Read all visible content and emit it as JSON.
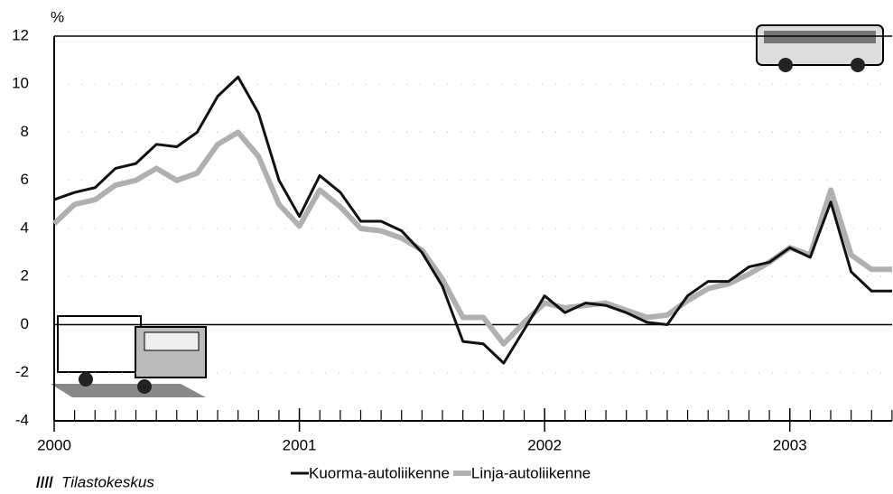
{
  "chart_data": {
    "type": "line",
    "y_label": "%",
    "source": "Tilastokeskus",
    "x": [
      2000,
      2000.083,
      2000.167,
      2000.25,
      2000.333,
      2000.417,
      2000.5,
      2000.583,
      2000.667,
      2000.75,
      2000.833,
      2000.917,
      2001,
      2001.083,
      2001.167,
      2001.25,
      2001.333,
      2001.417,
      2001.5,
      2001.583,
      2001.667,
      2001.75,
      2001.833,
      2001.917,
      2002,
      2002.083,
      2002.167,
      2002.25,
      2002.333,
      2002.417,
      2002.5,
      2002.583,
      2002.667,
      2002.75,
      2002.833,
      2002.917,
      2003,
      2003.083,
      2003.167,
      2003.25,
      2003.333,
      2003.417
    ],
    "series": [
      {
        "name": "Kuorma-autoliikenne",
        "color": "#111111",
        "width": 3,
        "values": [
          5.2,
          5.5,
          5.7,
          6.5,
          6.7,
          7.5,
          7.4,
          8.0,
          9.5,
          10.3,
          8.8,
          6.0,
          4.5,
          6.2,
          5.5,
          4.3,
          4.3,
          3.9,
          3.0,
          1.6,
          -0.7,
          -0.8,
          -1.6,
          -0.2,
          1.2,
          0.5,
          0.9,
          0.8,
          0.5,
          0.1,
          0.0,
          1.2,
          1.8,
          1.8,
          2.4,
          2.6,
          3.2,
          2.8,
          5.1,
          2.2,
          1.4,
          1.4
        ]
      },
      {
        "name": "Linja-autoliikenne",
        "color": "#b0b0b0",
        "width": 6,
        "values": [
          4.2,
          5.0,
          5.2,
          5.8,
          6.0,
          6.5,
          6.0,
          6.3,
          7.5,
          8.0,
          7.0,
          5.0,
          4.1,
          5.6,
          4.9,
          4.0,
          3.9,
          3.6,
          3.1,
          1.9,
          0.3,
          0.3,
          -0.8,
          0.1,
          0.9,
          0.7,
          0.8,
          0.9,
          0.6,
          0.3,
          0.4,
          1.0,
          1.5,
          1.7,
          2.1,
          2.6,
          3.2,
          2.9,
          5.6,
          2.9,
          2.3,
          2.3
        ]
      }
    ],
    "xlim": [
      2000,
      2003.417
    ],
    "xticks": [
      2000,
      2001,
      2002,
      2003
    ],
    "ylim": [
      -4,
      12
    ],
    "yticks": [
      -4,
      -2,
      0,
      2,
      4,
      6,
      8,
      10,
      12
    ],
    "grid": true
  }
}
